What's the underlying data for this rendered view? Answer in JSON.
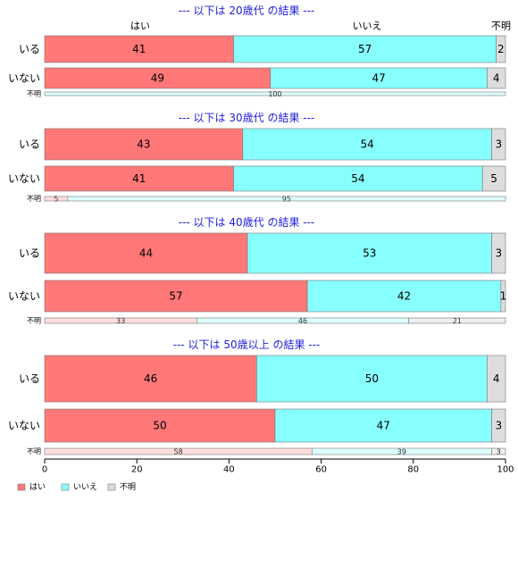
{
  "colors": {
    "yes": "#ff7777",
    "no": "#88ffff",
    "unknown": "#dddddd",
    "yes_light": "#ffdddd",
    "no_light": "#ddffff",
    "unknown_light": "#eeeeee",
    "title": "#2020dd"
  },
  "chart_data": {
    "type": "bar",
    "orientation": "horizontal",
    "stacked": "percent",
    "series_names": [
      "はい",
      "いいえ",
      "不明"
    ],
    "column_labels": [
      "はい",
      "いいえ",
      "不明"
    ],
    "xlim": [
      0,
      100
    ],
    "xticks": [
      "0",
      "20",
      "40",
      "60",
      "80",
      "100"
    ],
    "legend": [
      "はい",
      "いいえ",
      "不明"
    ],
    "legend_position": "bottom-left",
    "groups": [
      {
        "title": "--- 以下は 20歳代 の結果 ---",
        "rows": [
          {
            "label": "いる",
            "values": [
              41,
              57,
              2
            ],
            "small": false
          },
          {
            "label": "いない",
            "values": [
              49,
              47,
              4
            ],
            "small": false
          },
          {
            "label": "不明",
            "values": [
              0,
              100,
              0
            ],
            "small": true
          }
        ]
      },
      {
        "title": "--- 以下は 30歳代 の結果 ---",
        "rows": [
          {
            "label": "いる",
            "values": [
              43,
              54,
              3
            ],
            "small": false
          },
          {
            "label": "いない",
            "values": [
              41,
              54,
              5
            ],
            "small": false
          },
          {
            "label": "不明",
            "values": [
              5,
              95,
              0
            ],
            "small": true
          }
        ]
      },
      {
        "title": "--- 以下は 40歳代 の結果 ---",
        "rows": [
          {
            "label": "いる",
            "values": [
              44,
              53,
              3
            ],
            "small": false
          },
          {
            "label": "いない",
            "values": [
              57,
              42,
              1
            ],
            "small": false
          },
          {
            "label": "不明",
            "values": [
              33,
              46,
              21
            ],
            "small": true
          }
        ]
      },
      {
        "title": "--- 以下は 50歳以上 の結果 ---",
        "rows": [
          {
            "label": "いる",
            "values": [
              46,
              50,
              4
            ],
            "small": false
          },
          {
            "label": "いない",
            "values": [
              50,
              47,
              3
            ],
            "small": false
          },
          {
            "label": "不明",
            "values": [
              58,
              39,
              3
            ],
            "small": true
          }
        ]
      }
    ]
  }
}
